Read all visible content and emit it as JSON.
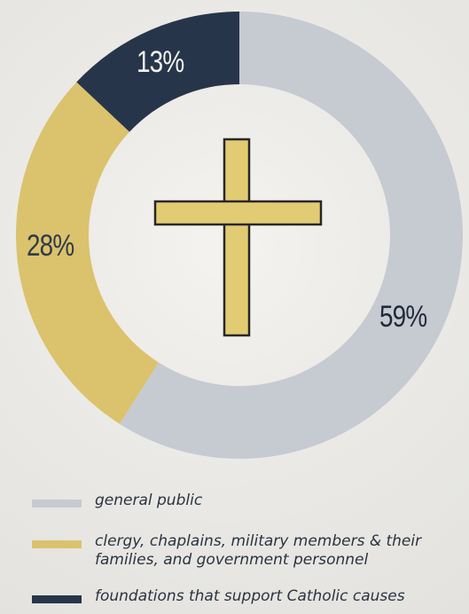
{
  "chart_data": {
    "type": "donut",
    "slices": [
      {
        "label": "general public",
        "value": 59,
        "display": "59%",
        "color": "#c6cad1"
      },
      {
        "label": "clergy, chaplains, military members & their families, and government personnel",
        "value": 28,
        "display": "28%",
        "color": "#dbc26c"
      },
      {
        "label": "foundations that support Catholic causes",
        "value": 13,
        "display": "13%",
        "color": "#27354a"
      }
    ],
    "start_angle_deg": 0,
    "direction": "clockwise",
    "center_icon": "cross-icon"
  },
  "colors": {
    "cross_fill": "#e1cc73",
    "cross_stroke": "#2a2622"
  }
}
